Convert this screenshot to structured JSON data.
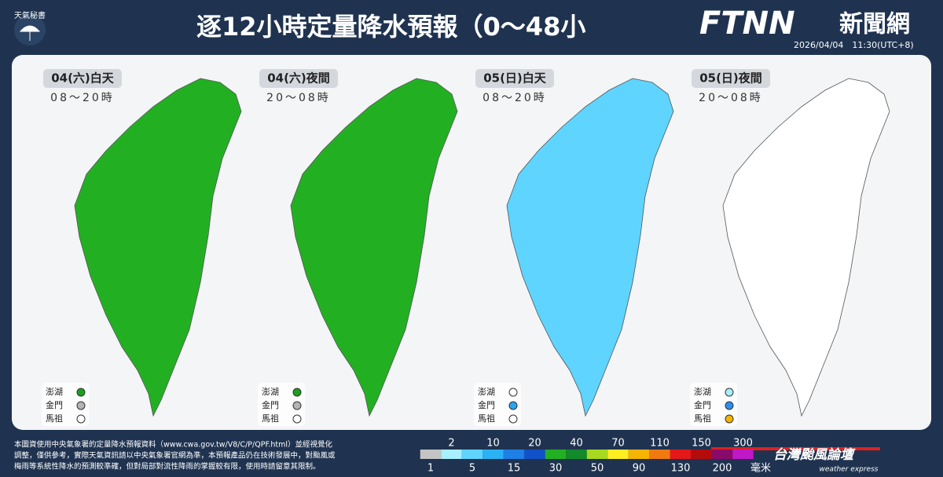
{
  "header": {
    "badge": "天氣秘書",
    "title": "逐12小時定量降水預報（0～48小",
    "logo": "FTNN",
    "logo_sub": "新聞網",
    "issued": "2026/04/04　11:30(UTC+8)"
  },
  "panels": [
    {
      "label": "04(六)白天",
      "hours": "08～20時",
      "islands": [
        {
          "name": "澎湖",
          "color": "#1aa01a"
        },
        {
          "name": "金門",
          "color": "#b4b4b4"
        },
        {
          "name": "馬祖",
          "color": "#ffffff"
        }
      ]
    },
    {
      "label": "04(六)夜間",
      "hours": "20～08時",
      "islands": [
        {
          "name": "澎湖",
          "color": "#1aa01a"
        },
        {
          "name": "金門",
          "color": "#b4b4b4"
        },
        {
          "name": "馬祖",
          "color": "#ffffff"
        }
      ]
    },
    {
      "label": "05(日)白天",
      "hours": "08～20時",
      "islands": [
        {
          "name": "澎湖",
          "color": "#ffffff"
        },
        {
          "name": "金門",
          "color": "#2aa6f0"
        },
        {
          "name": "馬祖",
          "color": "#ffffff"
        }
      ]
    },
    {
      "label": "05(日)夜間",
      "hours": "20～08時",
      "islands": [
        {
          "name": "澎湖",
          "color": "#a8eeff"
        },
        {
          "name": "金門",
          "color": "#2a8ff0"
        },
        {
          "name": "馬祖",
          "color": "#f5b400"
        }
      ]
    }
  ],
  "footnote": [
    "本圖資使用中央氣象署的定量降水預報資料（www.cwa.gov.tw/V8/C/P/QPF.html）並經視覺化",
    "調整，僅供參考，實際天氣資訊請以中央氣象署官網為準，本預報產品仍在技術發展中，對颱風或",
    "梅雨等系統性降水的預測較準確，但對局部對流性降雨的掌握較有限，使用時請留意其限制。"
  ],
  "scale": {
    "thresholds": [
      "1",
      "2",
      "5",
      "10",
      "15",
      "20",
      "30",
      "40",
      "50",
      "70",
      "90",
      "110",
      "130",
      "150",
      "200",
      "300"
    ],
    "colors": [
      "#c4c4c4",
      "#a8f0ff",
      "#5fd4ff",
      "#2ab2f5",
      "#1e7fe6",
      "#1252c8",
      "#22b022",
      "#128a2a",
      "#a8d820",
      "#ffee22",
      "#f5b400",
      "#f07a10",
      "#e41818",
      "#b40c0c",
      "#8a0a6a",
      "#c018c8"
    ],
    "unit": "毫米"
  },
  "brand": {
    "name": "台灣颱風論壇",
    "sub": "weather express"
  }
}
